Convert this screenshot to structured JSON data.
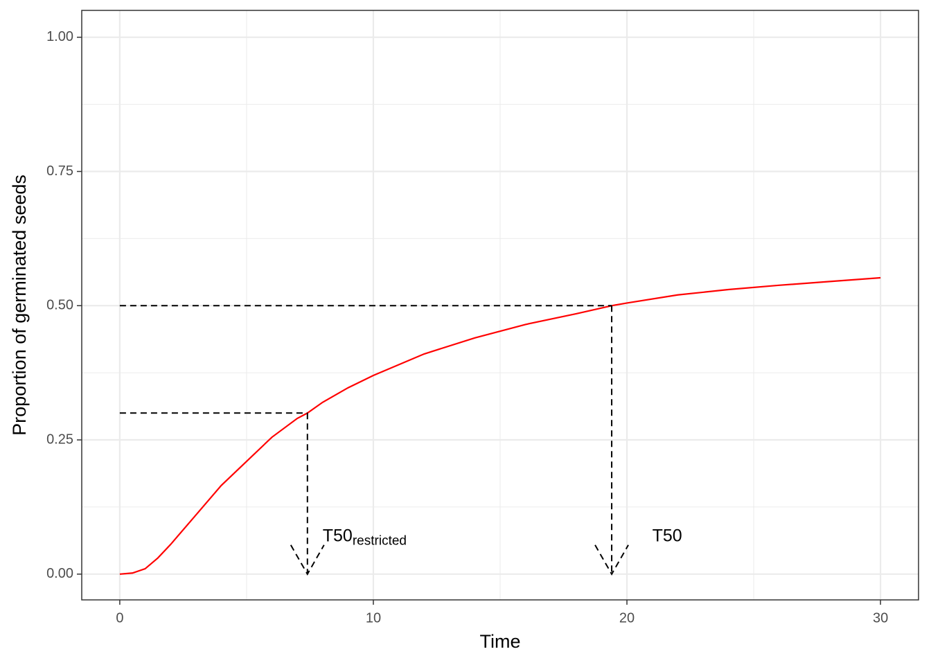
{
  "chart_data": {
    "type": "line",
    "x_label": "Time",
    "y_label": "Proportion of germinated seeds",
    "x": [
      0,
      0.5,
      1,
      1.5,
      2,
      3,
      4,
      5,
      6,
      7,
      7.4,
      8,
      9,
      10,
      12,
      14,
      16,
      18,
      19.4,
      20,
      22,
      24,
      26,
      28,
      30
    ],
    "values": [
      0,
      0.002,
      0.01,
      0.03,
      0.055,
      0.11,
      0.165,
      0.21,
      0.255,
      0.29,
      0.3,
      0.32,
      0.347,
      0.37,
      0.41,
      0.44,
      0.465,
      0.485,
      0.5,
      0.505,
      0.52,
      0.53,
      0.538,
      0.545,
      0.552
    ],
    "color": "#ff0000",
    "xlim": [
      -1.5,
      31.5
    ],
    "ylim": [
      -0.048,
      1.05
    ],
    "xticks": [
      0,
      10,
      20,
      30
    ],
    "yticks": [
      {
        "value": 0,
        "label": "0.00"
      },
      {
        "value": 0.25,
        "label": "0.25"
      },
      {
        "value": 0.5,
        "label": "0.50"
      },
      {
        "value": 0.75,
        "label": "0.75"
      },
      {
        "value": 1,
        "label": "1.00"
      }
    ],
    "grid": true,
    "reference_lines": [
      {
        "x": 19.4,
        "y": 0.5
      },
      {
        "x": 7.4,
        "y": 0.3
      }
    ],
    "annotations": [
      {
        "text": "T50",
        "x": 21,
        "y": 0.07
      },
      {
        "text": "T50",
        "subscript": "restricted",
        "x": 8,
        "y": 0.07
      }
    ]
  }
}
